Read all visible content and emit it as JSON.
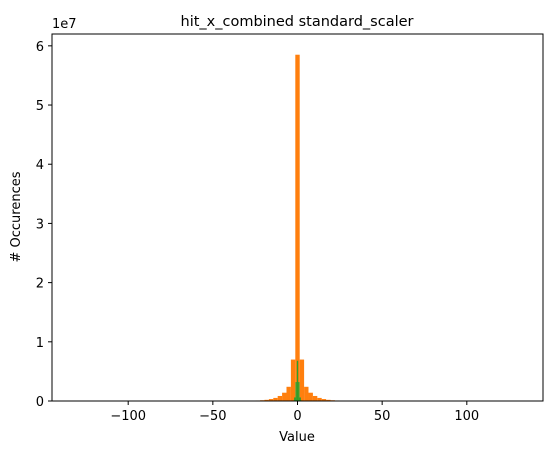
{
  "chart_data": {
    "type": "bar",
    "title": "hit_x_combined standard_scaler",
    "xlabel": "Value",
    "ylabel": "# Occurences",
    "y_multiplier_label": "1e7",
    "xlim": [
      -145,
      145
    ],
    "ylim": [
      0,
      62000000
    ],
    "xticks": [
      -100,
      -50,
      0,
      50,
      100
    ],
    "xtick_labels": [
      "−100",
      "−50",
      "0",
      "50",
      "100"
    ],
    "yticks": [
      0,
      10000000,
      20000000,
      30000000,
      40000000,
      50000000,
      60000000
    ],
    "ytick_labels": [
      "0",
      "1",
      "2",
      "3",
      "4",
      "5",
      "6"
    ],
    "grid": false,
    "series": [
      {
        "color": "#ff7f0e",
        "bin_width": 2.6,
        "bins": [
          {
            "x": -26.0,
            "value": 60000
          },
          {
            "x": -23.4,
            "value": 90000
          },
          {
            "x": -20.8,
            "value": 130000
          },
          {
            "x": -18.2,
            "value": 200000
          },
          {
            "x": -15.6,
            "value": 330000
          },
          {
            "x": -13.0,
            "value": 520000
          },
          {
            "x": -10.4,
            "value": 850000
          },
          {
            "x": -7.8,
            "value": 1400000
          },
          {
            "x": -5.2,
            "value": 2400000
          },
          {
            "x": -2.6,
            "value": 7000000
          },
          {
            "x": 0.0,
            "value": 58500000
          },
          {
            "x": 2.6,
            "value": 7000000
          },
          {
            "x": 5.2,
            "value": 2400000
          },
          {
            "x": 7.8,
            "value": 1400000
          },
          {
            "x": 10.4,
            "value": 850000
          },
          {
            "x": 13.0,
            "value": 520000
          },
          {
            "x": 15.6,
            "value": 330000
          },
          {
            "x": 18.2,
            "value": 200000
          },
          {
            "x": 20.8,
            "value": 130000
          },
          {
            "x": 23.4,
            "value": 90000
          },
          {
            "x": 26.0,
            "value": 60000
          }
        ]
      },
      {
        "color": "#2ca02c",
        "bin_width": 0.8,
        "bins": [
          {
            "x": -2.4,
            "value": 100000
          },
          {
            "x": -1.6,
            "value": 600000
          },
          {
            "x": -0.8,
            "value": 3200000
          },
          {
            "x": 0.0,
            "value": 6800000
          },
          {
            "x": 0.8,
            "value": 3200000
          },
          {
            "x": 1.6,
            "value": 600000
          },
          {
            "x": 2.4,
            "value": 100000
          }
        ]
      }
    ]
  }
}
